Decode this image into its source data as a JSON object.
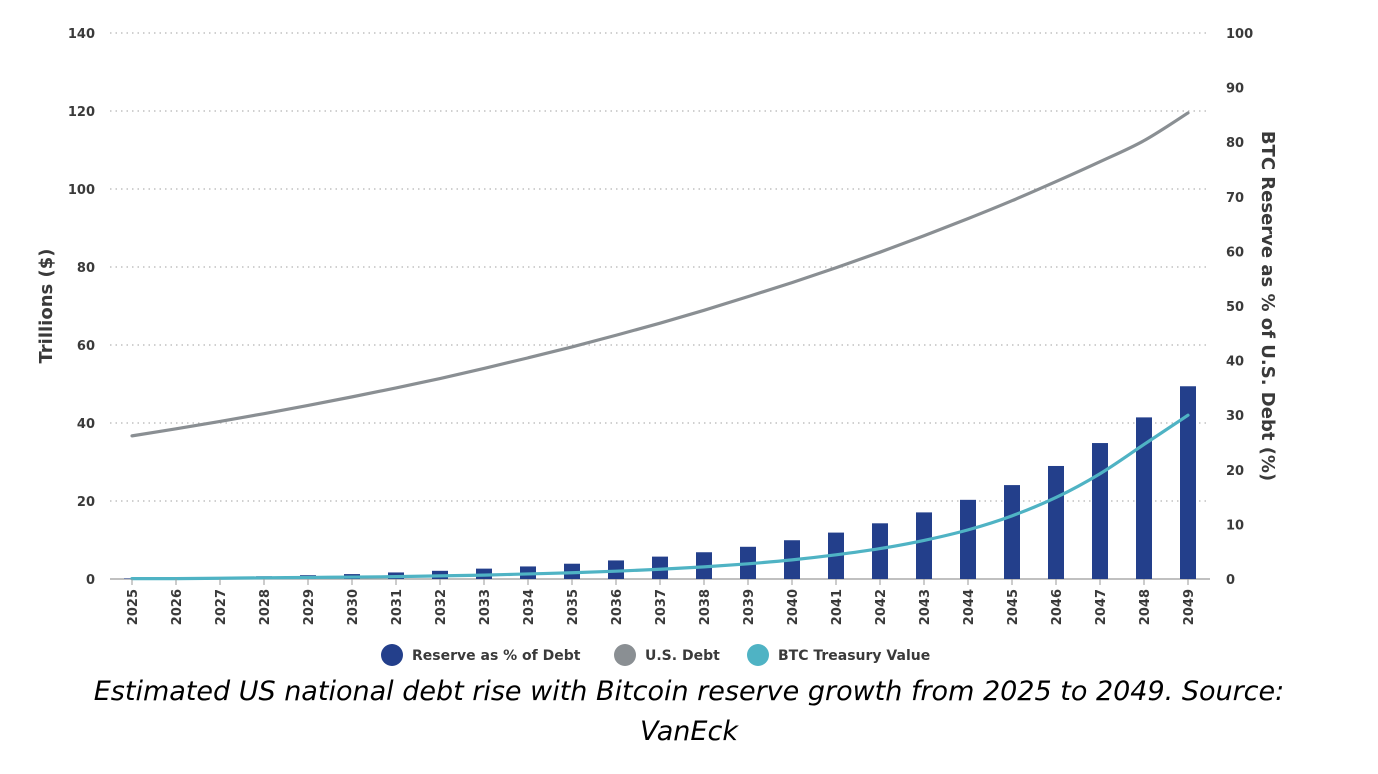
{
  "chart_data": {
    "type": "bar+line",
    "categories": [
      "2025",
      "2026",
      "2027",
      "2028",
      "2029",
      "2030",
      "2031",
      "2032",
      "2033",
      "2034",
      "2035",
      "2036",
      "2037",
      "2038",
      "2039",
      "2040",
      "2041",
      "2042",
      "2043",
      "2044",
      "2045",
      "2046",
      "2047",
      "2048",
      "2049"
    ],
    "series": [
      {
        "name": "Reserve as % of Debt",
        "type": "bar",
        "axis": "right",
        "color": "#233f8b",
        "values": [
          0.1,
          0.2,
          0.3,
          0.5,
          0.7,
          0.9,
          1.2,
          1.5,
          1.9,
          2.3,
          2.8,
          3.4,
          4.1,
          4.9,
          5.9,
          7.1,
          8.5,
          10.2,
          12.2,
          14.5,
          17.2,
          20.7,
          24.9,
          29.6,
          35.3
        ]
      },
      {
        "name": "U.S. Debt",
        "type": "line",
        "axis": "left",
        "color": "#8a8f93",
        "values": [
          36.7,
          38.5,
          40.4,
          42.4,
          44.5,
          46.7,
          49.0,
          51.4,
          54.0,
          56.7,
          59.5,
          62.5,
          65.6,
          68.9,
          72.4,
          76.0,
          79.8,
          83.8,
          88.0,
          92.4,
          97.0,
          101.9,
          107.0,
          112.4,
          119.5
        ]
      },
      {
        "name": "BTC Treasury Value",
        "type": "line",
        "axis": "left",
        "color": "#4fb3c4",
        "values": [
          0.1,
          0.1,
          0.2,
          0.3,
          0.4,
          0.5,
          0.6,
          0.8,
          1.0,
          1.3,
          1.6,
          2.0,
          2.5,
          3.1,
          3.9,
          4.9,
          6.2,
          7.8,
          9.9,
          12.6,
          16.2,
          20.9,
          27.0,
          34.5,
          42.0
        ]
      }
    ],
    "y_left": {
      "label": "Trillions ($)",
      "min": 0,
      "max": 140,
      "ticks": [
        0,
        20,
        40,
        60,
        80,
        100,
        120,
        140
      ]
    },
    "y_right": {
      "label": "BTC Reserve as % of U.S. Debt (%)",
      "min": 0,
      "max": 100,
      "ticks": [
        0,
        10,
        20,
        30,
        40,
        50,
        60,
        70,
        80,
        90,
        100
      ]
    },
    "grid": true,
    "legend_position": "bottom-center"
  },
  "caption": {
    "line1": "Estimated US national debt rise with Bitcoin reserve growth from 2025 to 2049. Source:",
    "line2": "VanEck"
  }
}
